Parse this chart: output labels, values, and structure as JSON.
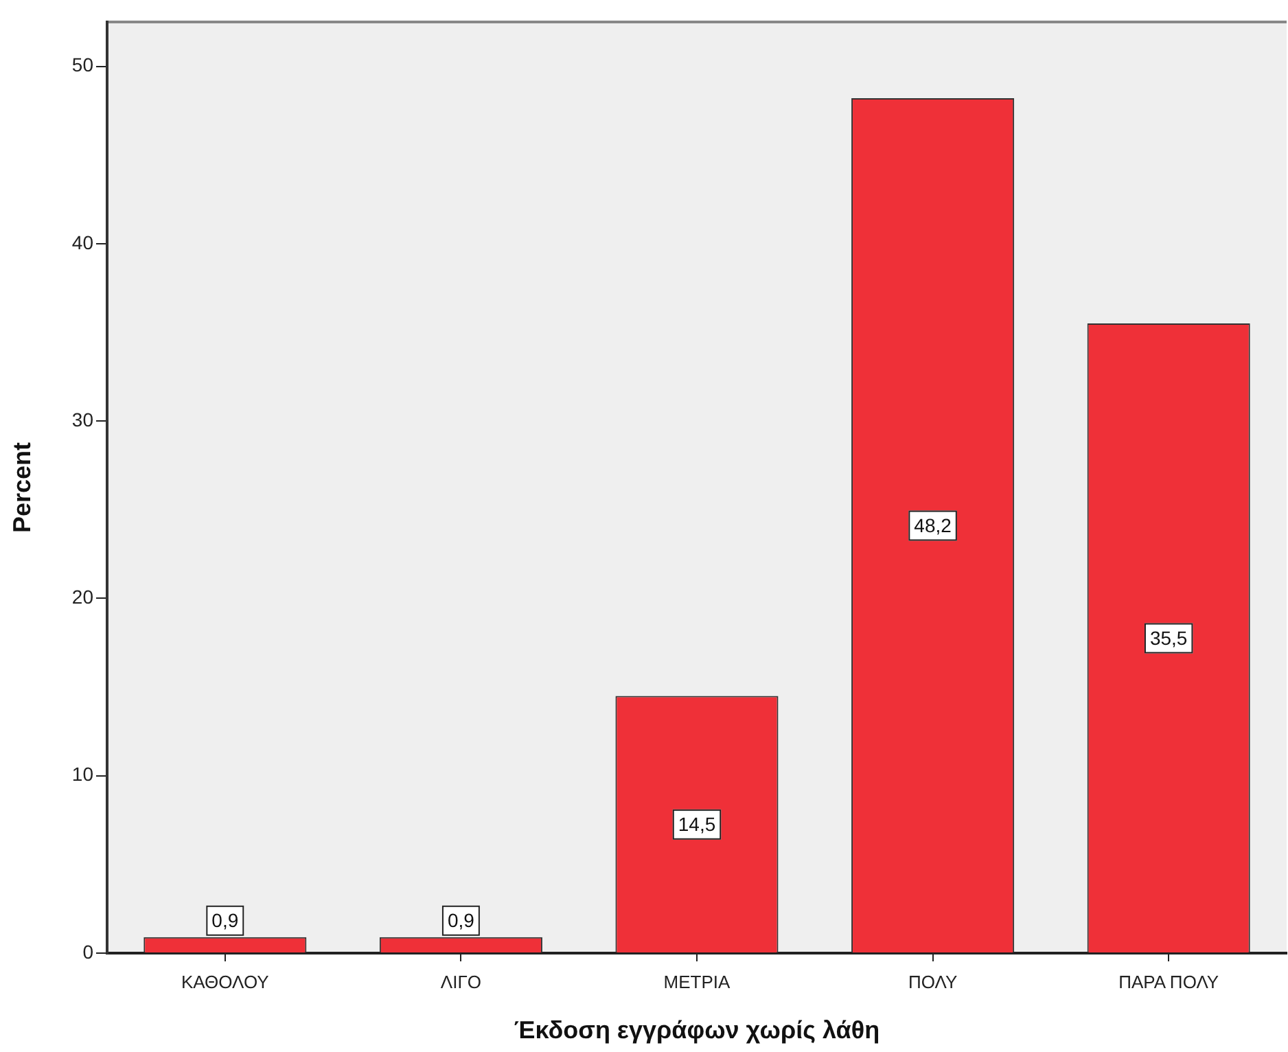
{
  "chart_data": {
    "type": "bar",
    "xlabel": "Έκδοση εγγράφων χωρίς λάθη",
    "ylabel": "Percent",
    "categories": [
      "ΚΑΘΟΛΟΥ",
      "ΛΙΓΟ",
      "ΜΕΤΡΙΑ",
      "ΠΟΛΥ",
      "ΠΑΡΑ ΠΟΛΥ"
    ],
    "values": [
      0.9,
      0.9,
      14.5,
      48.2,
      35.5
    ],
    "value_labels": [
      "0,9",
      "0,9",
      "14,5",
      "48,2",
      "35,5"
    ],
    "color": "#ef3038",
    "ylim": [
      0,
      52.5
    ],
    "yticks": [
      0,
      10,
      20,
      30,
      40,
      50
    ],
    "grid": false,
    "legend": false
  }
}
